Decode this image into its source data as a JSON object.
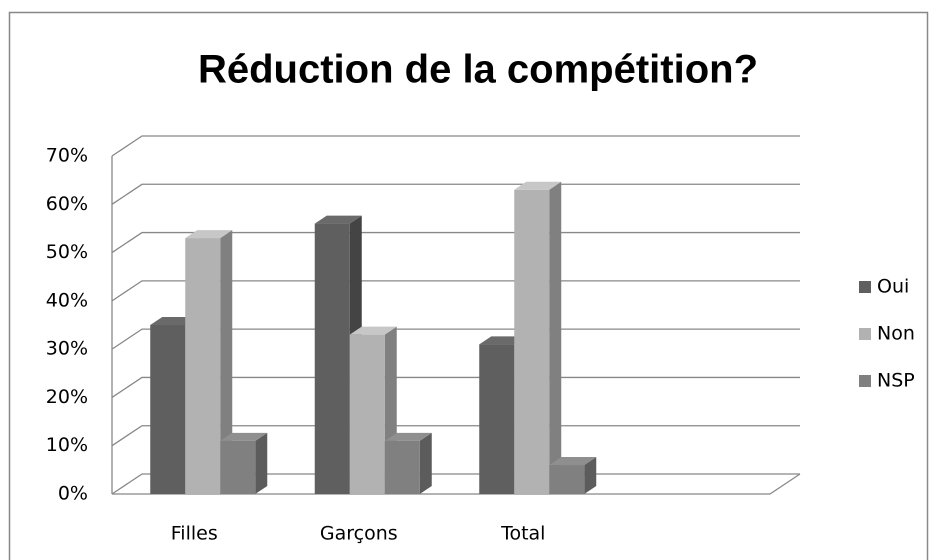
{
  "chart_data": {
    "type": "bar3d",
    "title": "Réduction de la compétition?",
    "categories": [
      "Filles",
      "Garçons",
      "Total",
      null
    ],
    "series": [
      {
        "name": "Oui",
        "color": "#5f5f5f",
        "values": [
          35,
          56,
          31,
          null
        ]
      },
      {
        "name": "Non",
        "color": "#b2b2b2",
        "values": [
          53,
          33,
          63,
          null
        ]
      },
      {
        "name": "NSP",
        "color": "#808080",
        "values": [
          11,
          11,
          6,
          null
        ]
      }
    ],
    "ylim": [
      0,
      70
    ],
    "yticks": [
      {
        "value": 0,
        "label": "0%"
      },
      {
        "value": 10,
        "label": "10%"
      },
      {
        "value": 20,
        "label": "20%"
      },
      {
        "value": 30,
        "label": "30%"
      },
      {
        "value": 40,
        "label": "40%"
      },
      {
        "value": 50,
        "label": "50%"
      },
      {
        "value": 60,
        "label": "60%"
      },
      {
        "value": 70,
        "label": "70%"
      }
    ],
    "grid": true,
    "legend": "right"
  }
}
